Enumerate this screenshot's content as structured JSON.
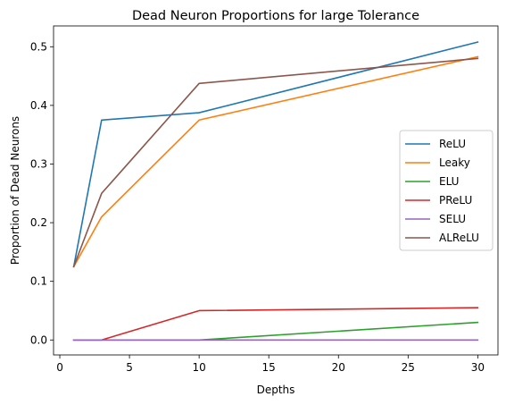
{
  "chart_data": {
    "type": "line",
    "title": "Dead Neuron Proportions for large Tolerance",
    "xlabel": "Depths",
    "ylabel": "Proportion of Dead Neurons",
    "xlim": [
      -0.45,
      31.45
    ],
    "ylim": [
      -0.0255,
      0.5355
    ],
    "xticks": [
      0,
      5,
      10,
      15,
      20,
      25,
      30
    ],
    "yticks": [
      0.0,
      0.1,
      0.2,
      0.3,
      0.4,
      0.5
    ],
    "xtick_labels": [
      "0",
      "5",
      "10",
      "15",
      "20",
      "25",
      "30"
    ],
    "ytick_labels": [
      "0.0",
      "0.1",
      "0.2",
      "0.3",
      "0.4",
      "0.5"
    ],
    "grid": false,
    "legend_position": "center-right",
    "x": [
      1,
      3,
      10,
      30
    ],
    "series": [
      {
        "name": "ReLU",
        "color": "#1f77b4",
        "values": [
          0.125,
          0.375,
          0.3875,
          0.508
        ]
      },
      {
        "name": "Leaky",
        "color": "#ff7f0e",
        "values": [
          0.125,
          0.21,
          0.375,
          0.483
        ]
      },
      {
        "name": "ELU",
        "color": "#2ca02c",
        "values": [
          0.0,
          0.0,
          0.0,
          0.03
        ]
      },
      {
        "name": "PReLU",
        "color": "#d62728",
        "values": [
          0.0,
          0.0,
          0.05,
          0.055
        ]
      },
      {
        "name": "SELU",
        "color": "#9467bd",
        "values": [
          0.0,
          0.0,
          0.0,
          0.0
        ]
      },
      {
        "name": "ALReLU",
        "color": "#8c564b",
        "values": [
          0.125,
          0.25,
          0.4375,
          0.48
        ]
      }
    ]
  }
}
